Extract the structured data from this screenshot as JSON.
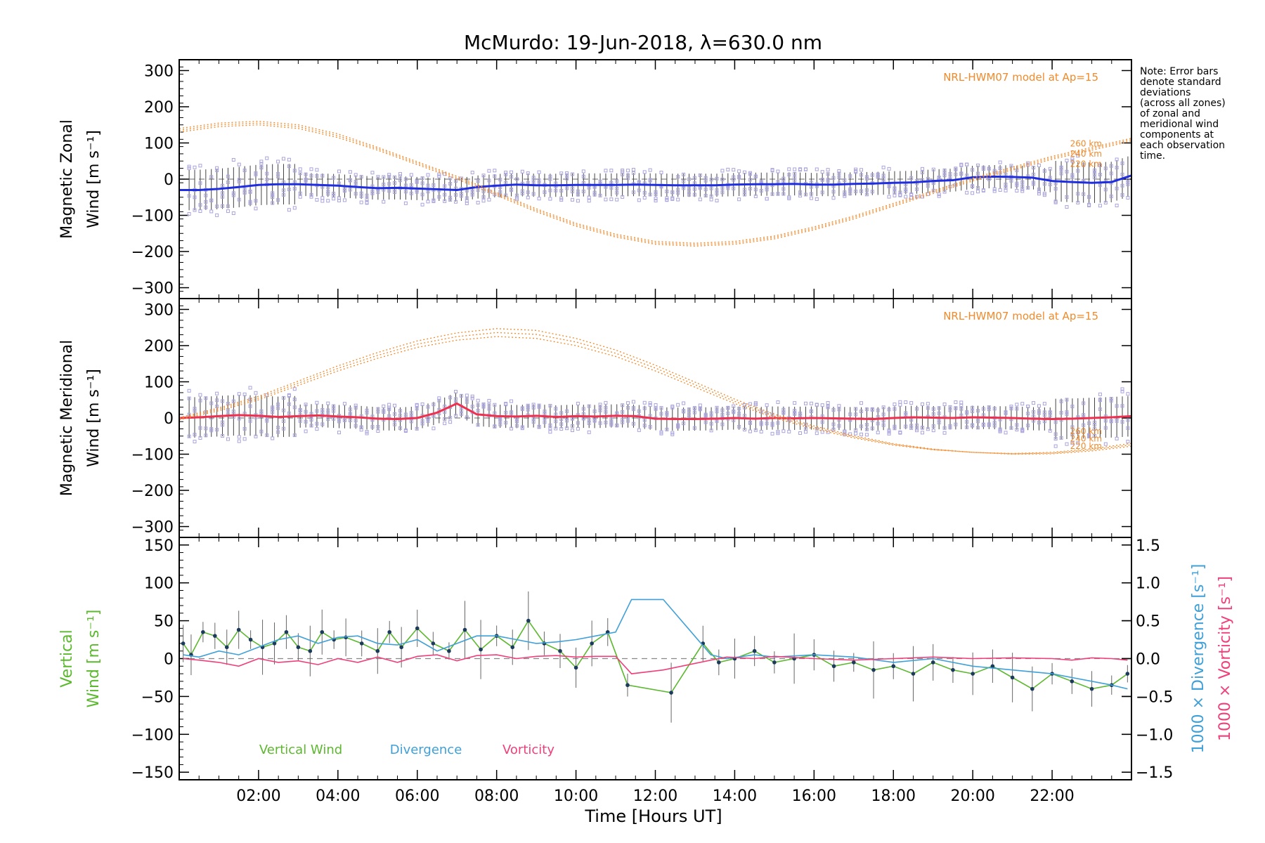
{
  "figure": {
    "title": "McMurdo: 19-Jun-2018, λ=630.0 nm",
    "note": [
      "Note: Error bars",
      "denote standard",
      "deviations",
      "(across all zones)",
      "of zonal and",
      "meridional wind",
      "components at",
      "each observation",
      "time."
    ]
  },
  "chart_data": [
    {
      "type": "line",
      "panel": "zonal",
      "ylabel": [
        "Magnetic Zonal",
        "Wind [m s⁻¹]"
      ],
      "ylim": [
        -330,
        330
      ],
      "yticks": [
        -300,
        -200,
        -100,
        0,
        100,
        200,
        300
      ],
      "xlim": [
        0,
        24
      ],
      "model_label": "NRL-HWM07 model at Ap=15",
      "altitude_labels": [
        "260 km",
        "240 km",
        "220 km"
      ],
      "series": [
        {
          "name": "Zonal wind",
          "color": "#1f2ee0",
          "x": [
            0.0,
            0.5,
            1.0,
            1.5,
            2.0,
            2.5,
            3.0,
            3.5,
            4.0,
            4.5,
            5.0,
            5.5,
            6.0,
            6.5,
            7.0,
            7.5,
            8.0,
            8.5,
            9.0,
            9.5,
            10.0,
            10.5,
            11.0,
            11.5,
            12.0,
            12.5,
            13.0,
            13.5,
            14.0,
            14.5,
            15.0,
            15.5,
            16.0,
            16.5,
            17.0,
            17.5,
            18.0,
            18.5,
            19.0,
            19.5,
            20.0,
            20.5,
            21.0,
            21.5,
            22.0,
            22.5,
            23.0,
            23.5,
            24.0
          ],
          "values": [
            -30,
            -30,
            -27,
            -22,
            -16,
            -14,
            -14,
            -16,
            -18,
            -22,
            -25,
            -24,
            -26,
            -28,
            -30,
            -22,
            -18,
            -15,
            -17,
            -17,
            -16,
            -16,
            -16,
            -15,
            -16,
            -17,
            -17,
            -17,
            -15,
            -14,
            -14,
            -13,
            -15,
            -15,
            -13,
            -12,
            -10,
            -9,
            -5,
            -3,
            5,
            7,
            6,
            4,
            -5,
            -8,
            -10,
            -8,
            10
          ]
        },
        {
          "name": "HWM07 220 km",
          "color": "#f08a2a",
          "x": [
            0,
            1,
            2,
            3,
            4,
            5,
            6,
            7,
            8,
            9,
            10,
            11,
            12,
            13,
            14,
            15,
            16,
            17,
            18,
            19,
            20,
            21,
            22,
            23,
            24
          ],
          "values": [
            130,
            145,
            150,
            140,
            115,
            80,
            40,
            0,
            -45,
            -90,
            -130,
            -160,
            -180,
            -185,
            -180,
            -165,
            -140,
            -110,
            -75,
            -40,
            -5,
            25,
            55,
            80,
            105
          ]
        },
        {
          "name": "HWM07 240 km",
          "color": "#f08a2a",
          "x": [
            0,
            1,
            2,
            3,
            4,
            5,
            6,
            7,
            8,
            9,
            10,
            11,
            12,
            13,
            14,
            15,
            16,
            17,
            18,
            19,
            20,
            21,
            22,
            23,
            24
          ],
          "values": [
            135,
            150,
            155,
            145,
            120,
            84,
            44,
            4,
            -41,
            -86,
            -126,
            -156,
            -176,
            -181,
            -176,
            -161,
            -136,
            -106,
            -71,
            -36,
            -1,
            29,
            59,
            84,
            109
          ]
        },
        {
          "name": "HWM07 260 km",
          "color": "#f08a2a",
          "x": [
            0,
            1,
            2,
            3,
            4,
            5,
            6,
            7,
            8,
            9,
            10,
            11,
            12,
            13,
            14,
            15,
            16,
            17,
            18,
            19,
            20,
            21,
            22,
            23,
            24
          ],
          "values": [
            140,
            155,
            160,
            150,
            125,
            88,
            48,
            8,
            -37,
            -82,
            -122,
            -152,
            -172,
            -177,
            -172,
            -157,
            -132,
            -102,
            -67,
            -32,
            3,
            33,
            63,
            88,
            113
          ]
        }
      ]
    },
    {
      "type": "line",
      "panel": "meridional",
      "ylabel": [
        "Magnetic Meridional",
        "Wind [m s⁻¹]"
      ],
      "ylim": [
        -330,
        330
      ],
      "yticks": [
        -300,
        -200,
        -100,
        0,
        100,
        200,
        300
      ],
      "xlim": [
        0,
        24
      ],
      "model_label": "NRL-HWM07 model at Ap=15",
      "altitude_labels": [
        "260 km",
        "240 km",
        "220 km"
      ],
      "series": [
        {
          "name": "Meridional wind",
          "color": "#f0304f",
          "x": [
            0.0,
            0.5,
            1.0,
            1.5,
            2.0,
            2.5,
            3.0,
            3.5,
            4.0,
            4.5,
            5.0,
            5.5,
            6.0,
            6.5,
            7.0,
            7.5,
            8.0,
            8.5,
            9.0,
            9.5,
            10.0,
            10.5,
            11.0,
            11.5,
            12.0,
            12.5,
            13.0,
            13.5,
            14.0,
            14.5,
            15.0,
            15.5,
            16.0,
            16.5,
            17.0,
            17.5,
            18.0,
            18.5,
            19.0,
            19.5,
            20.0,
            20.5,
            21.0,
            21.5,
            22.0,
            22.5,
            23.0,
            23.5,
            24.0
          ],
          "values": [
            0,
            2,
            5,
            8,
            6,
            3,
            5,
            7,
            4,
            2,
            -2,
            -3,
            0,
            15,
            40,
            10,
            5,
            4,
            6,
            3,
            5,
            4,
            6,
            5,
            -2,
            -3,
            -3,
            -2,
            0,
            -2,
            0,
            -1,
            0,
            -1,
            -2,
            -3,
            0,
            2,
            1,
            0,
            2,
            1,
            0,
            -2,
            -3,
            -2,
            0,
            2,
            5
          ]
        },
        {
          "name": "HWM07 220 km",
          "color": "#f08a2a",
          "x": [
            0,
            1,
            2,
            3,
            4,
            5,
            6,
            7,
            8,
            9,
            10,
            11,
            12,
            13,
            14,
            15,
            16,
            17,
            18,
            19,
            20,
            21,
            22,
            23,
            24
          ],
          "values": [
            -5,
            20,
            50,
            90,
            130,
            165,
            195,
            215,
            225,
            220,
            200,
            170,
            130,
            85,
            40,
            0,
            -30,
            -55,
            -75,
            -88,
            -95,
            -98,
            -95,
            -85,
            -70
          ]
        },
        {
          "name": "HWM07 240 km",
          "color": "#f08a2a",
          "x": [
            0,
            1,
            2,
            3,
            4,
            5,
            6,
            7,
            8,
            9,
            10,
            11,
            12,
            13,
            14,
            15,
            16,
            17,
            18,
            19,
            20,
            21,
            22,
            23,
            24
          ],
          "values": [
            -2,
            24,
            55,
            96,
            137,
            173,
            204,
            225,
            236,
            231,
            210,
            179,
            138,
            92,
            46,
            5,
            -26,
            -52,
            -73,
            -87,
            -95,
            -99,
            -97,
            -88,
            -74
          ]
        },
        {
          "name": "HWM07 260 km",
          "color": "#f08a2a",
          "x": [
            0,
            1,
            2,
            3,
            4,
            5,
            6,
            7,
            8,
            9,
            10,
            11,
            12,
            13,
            14,
            15,
            16,
            17,
            18,
            19,
            20,
            21,
            22,
            23,
            24
          ],
          "values": [
            1,
            28,
            60,
            102,
            144,
            181,
            213,
            235,
            247,
            242,
            220,
            188,
            146,
            99,
            52,
            10,
            -22,
            -49,
            -71,
            -86,
            -95,
            -100,
            -99,
            -91,
            -78
          ]
        }
      ]
    },
    {
      "type": "line",
      "panel": "vertical",
      "ylabel": [
        "Vertical",
        "Wind [m s⁻¹]"
      ],
      "ylim": [
        -160,
        160
      ],
      "yticks": [
        -150,
        -100,
        -50,
        0,
        50,
        100,
        150
      ],
      "right_ylim": [
        -1.6,
        1.6
      ],
      "right_yticks": [
        -1.5,
        -1.0,
        -0.5,
        0.0,
        0.5,
        1.0,
        1.5
      ],
      "right_ylabel_divergence": "1000 × Divergence [s⁻¹]",
      "right_ylabel_vorticity": "1000 × Vorticity [s⁻¹]",
      "xlim": [
        0,
        24
      ],
      "xticks": [
        2,
        4,
        6,
        8,
        10,
        12,
        14,
        16,
        18,
        20,
        22
      ],
      "xticklabels": [
        "02:00",
        "04:00",
        "06:00",
        "08:00",
        "10:00",
        "12:00",
        "14:00",
        "16:00",
        "18:00",
        "20:00",
        "22:00"
      ],
      "xlabel": "Time [Hours UT]",
      "legend": [
        {
          "label": "Vertical Wind",
          "color": "#5cb82e"
        },
        {
          "label": "Divergence",
          "color": "#3fa0d8"
        },
        {
          "label": "Vorticity",
          "color": "#f0407a"
        }
      ],
      "series": [
        {
          "name": "Vertical Wind",
          "color": "#5cb82e",
          "x": [
            0.1,
            0.3,
            0.6,
            0.9,
            1.2,
            1.5,
            1.8,
            2.1,
            2.4,
            2.7,
            3.0,
            3.3,
            3.6,
            3.9,
            4.2,
            4.6,
            5.0,
            5.3,
            5.6,
            6.0,
            6.4,
            6.8,
            7.2,
            7.6,
            8.0,
            8.4,
            8.8,
            9.2,
            9.6,
            10.0,
            10.4,
            10.8,
            11.3,
            12.4,
            13.2,
            13.6,
            14.0,
            14.5,
            15.0,
            15.5,
            16.0,
            16.5,
            17.0,
            17.5,
            18.0,
            18.5,
            19.0,
            19.5,
            20.0,
            20.5,
            21.0,
            21.5,
            22.0,
            22.5,
            23.0,
            23.5,
            23.9
          ],
          "values": [
            20,
            5,
            35,
            30,
            15,
            38,
            25,
            15,
            20,
            35,
            15,
            10,
            35,
            25,
            28,
            20,
            10,
            35,
            15,
            40,
            20,
            10,
            38,
            12,
            30,
            15,
            50,
            20,
            10,
            -12,
            20,
            35,
            -35,
            -45,
            20,
            -5,
            0,
            10,
            -5,
            0,
            5,
            -10,
            -5,
            -15,
            -10,
            -20,
            -5,
            -15,
            -20,
            -10,
            -25,
            -40,
            -20,
            -30,
            -40,
            -35,
            -20
          ]
        },
        {
          "name": "Divergence",
          "color": "#3fa0d8",
          "yaxis": "right",
          "x": [
            0.1,
            0.5,
            1.0,
            1.5,
            2.0,
            2.5,
            3.0,
            3.5,
            4.0,
            4.5,
            5.0,
            5.5,
            6.0,
            6.5,
            7.0,
            7.5,
            8.0,
            8.5,
            9.0,
            9.5,
            10.0,
            10.5,
            11.0,
            11.4,
            12.2,
            13.4,
            13.8,
            14.5,
            15.0,
            16.0,
            17.0,
            18.0,
            19.0,
            20.0,
            21.0,
            22.0,
            22.5,
            23.0,
            23.5,
            23.9
          ],
          "values": [
            0.05,
            0.02,
            0.1,
            0.05,
            0.15,
            0.25,
            0.3,
            0.2,
            0.28,
            0.3,
            0.2,
            0.18,
            0.25,
            0.1,
            0.2,
            0.3,
            0.3,
            0.25,
            0.2,
            0.22,
            0.25,
            0.3,
            0.35,
            0.78,
            0.78,
            0.05,
            0.0,
            0.05,
            0.02,
            0.05,
            0.02,
            -0.05,
            0.0,
            -0.1,
            -0.15,
            -0.2,
            -0.25,
            -0.3,
            -0.35,
            -0.4
          ]
        },
        {
          "name": "Vorticity",
          "color": "#f0407a",
          "yaxis": "right",
          "x": [
            0.1,
            0.5,
            1.0,
            1.5,
            2.0,
            2.5,
            3.0,
            3.5,
            4.0,
            4.5,
            5.0,
            5.5,
            6.0,
            6.5,
            7.0,
            7.5,
            8.0,
            8.5,
            9.0,
            9.5,
            10.0,
            10.5,
            11.0,
            11.4,
            12.2,
            13.4,
            13.8,
            14.5,
            15.0,
            16.0,
            17.0,
            18.0,
            19.0,
            20.0,
            21.0,
            22.0,
            22.5,
            23.0,
            23.5,
            23.9
          ],
          "values": [
            0.0,
            -0.02,
            -0.05,
            -0.1,
            0.0,
            -0.05,
            -0.03,
            -0.08,
            0.0,
            -0.05,
            0.02,
            -0.05,
            0.03,
            0.05,
            -0.03,
            0.04,
            0.05,
            0.0,
            0.03,
            0.04,
            0.02,
            0.03,
            0.03,
            -0.2,
            -0.15,
            -0.02,
            0.02,
            0.0,
            0.03,
            0.0,
            -0.02,
            0.0,
            0.02,
            0.0,
            0.01,
            0.0,
            -0.02,
            0.01,
            0.0,
            -0.02
          ]
        }
      ]
    }
  ]
}
